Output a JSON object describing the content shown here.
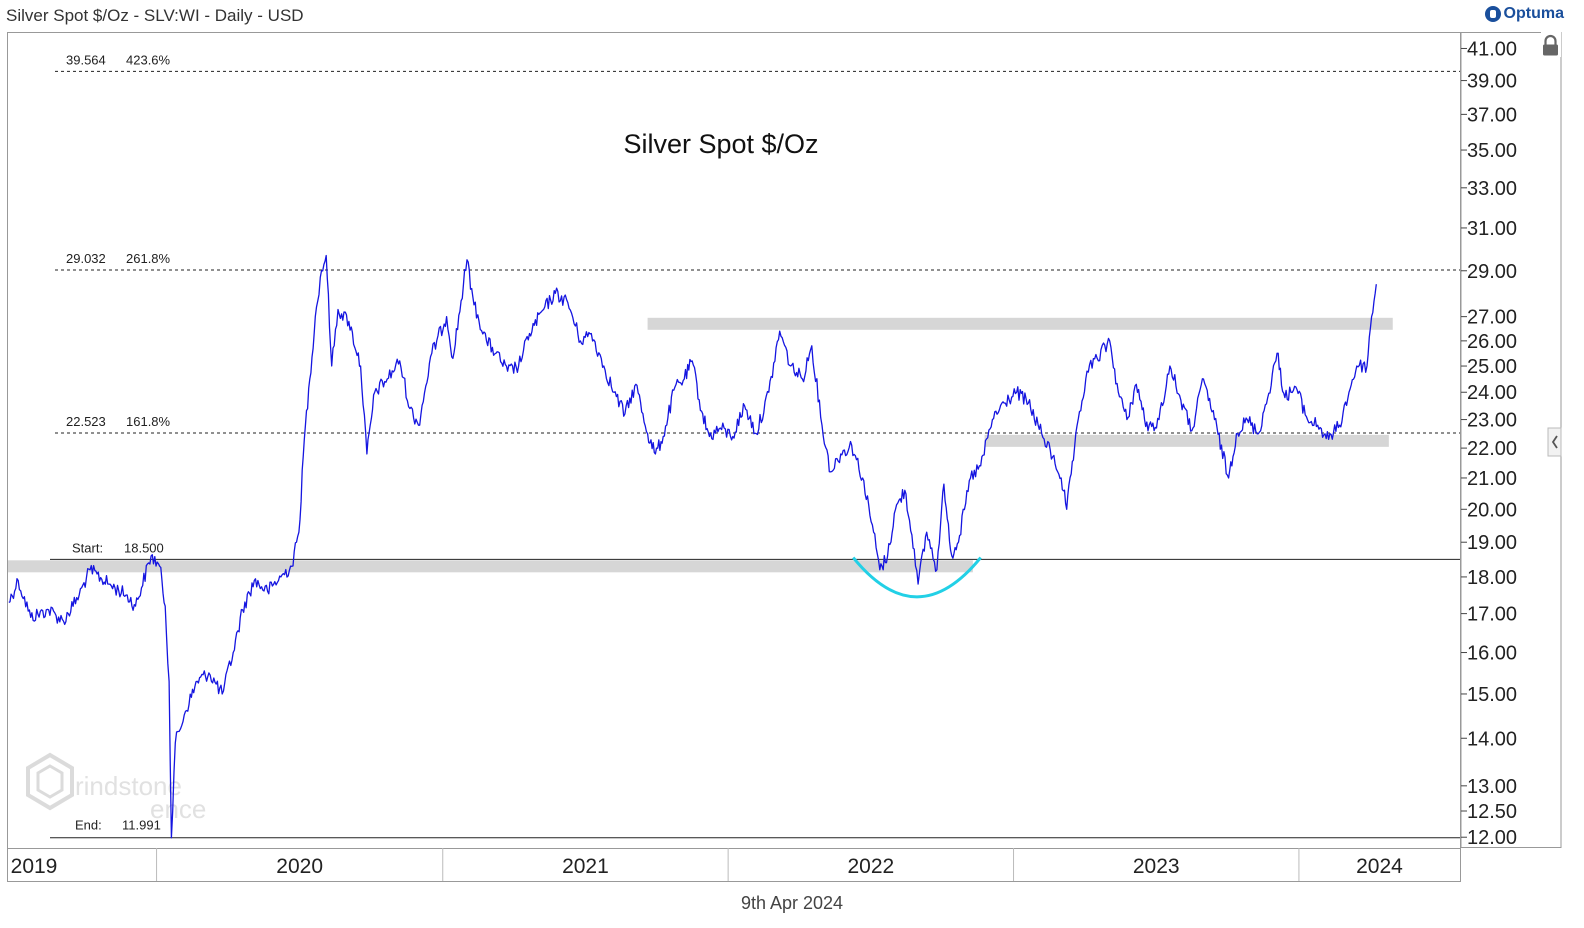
{
  "header": {
    "title": "Silver Spot $/Oz - SLV:WI - Daily - USD",
    "brand": "Optuma",
    "brand_mark_icon": "optuma-logo-icon"
  },
  "footer": {
    "date": "9th Apr 2024"
  },
  "watermark": {
    "text_line1": "rindstone",
    "text_line2": "ence",
    "icon": "grindstone-logo-icon"
  },
  "controls": {
    "lock_icon": "lock-icon",
    "collapse_icon": "chevron-left-icon"
  },
  "colors": {
    "price": "#1515e0",
    "arc": "#22d0e6",
    "band": "#d6d6d6",
    "axis": "#666666",
    "text": "#222222"
  },
  "chart_data": {
    "type": "line",
    "title": "Silver Spot $/Oz",
    "scale": "log",
    "ylim": [
      11.8,
      42
    ],
    "xlim": [
      "2019-06-25",
      "2024-07-25"
    ],
    "y_ticks": [
      "41.00",
      "39.00",
      "37.00",
      "35.00",
      "33.00",
      "31.00",
      "29.00",
      "27.00",
      "26.00",
      "25.00",
      "24.00",
      "23.00",
      "22.00",
      "21.00",
      "20.00",
      "19.00",
      "18.00",
      "17.00",
      "16.00",
      "15.00",
      "14.00",
      "13.00",
      "12.50",
      "12.00"
    ],
    "x_ticks": [
      {
        "label": "2019",
        "date": "2019-07-01"
      },
      {
        "label": "2020",
        "date": "2020-01-01"
      },
      {
        "label": "2021",
        "date": "2021-01-01"
      },
      {
        "label": "2022",
        "date": "2022-01-01"
      },
      {
        "label": "2023",
        "date": "2023-01-01"
      },
      {
        "label": "2024",
        "date": "2024-01-01"
      }
    ],
    "series": [
      {
        "values": [
          [
            "2019-06-26",
            17.3
          ],
          [
            "2019-07-08",
            17.9
          ],
          [
            "2019-07-24",
            16.9
          ],
          [
            "2019-08-16",
            17.1
          ],
          [
            "2019-09-04",
            16.8
          ],
          [
            "2019-09-24",
            17.5
          ],
          [
            "2019-10-08",
            18.2
          ],
          [
            "2019-11-01",
            17.8
          ],
          [
            "2019-11-23",
            17.5
          ],
          [
            "2019-12-05",
            17.2
          ],
          [
            "2019-12-25",
            18.6
          ],
          [
            "2020-01-05",
            18.3
          ],
          [
            "2020-01-12",
            17.2
          ],
          [
            "2020-01-17",
            15.3
          ],
          [
            "2020-01-20",
            11.991
          ],
          [
            "2020-01-25",
            13.9
          ],
          [
            "2020-02-07",
            14.6
          ],
          [
            "2020-02-22",
            15.3
          ],
          [
            "2020-03-08",
            15.5
          ],
          [
            "2020-03-25",
            15.0
          ],
          [
            "2020-04-08",
            16.0
          ],
          [
            "2020-04-20",
            17.1
          ],
          [
            "2020-05-05",
            17.9
          ],
          [
            "2020-05-22",
            17.6
          ],
          [
            "2020-06-08",
            18.0
          ],
          [
            "2020-06-22",
            18.3
          ],
          [
            "2020-07-01",
            19.3
          ],
          [
            "2020-07-08",
            22.3
          ],
          [
            "2020-07-15",
            24.5
          ],
          [
            "2020-07-22",
            27.0
          ],
          [
            "2020-07-30",
            29.0
          ],
          [
            "2020-08-05",
            29.7
          ],
          [
            "2020-08-12",
            25.0
          ],
          [
            "2020-08-20",
            27.3
          ],
          [
            "2020-09-03",
            26.8
          ],
          [
            "2020-09-18",
            25.0
          ],
          [
            "2020-09-26",
            21.8
          ],
          [
            "2020-10-06",
            24.0
          ],
          [
            "2020-10-22",
            24.5
          ],
          [
            "2020-11-07",
            25.2
          ],
          [
            "2020-11-20",
            23.4
          ],
          [
            "2020-12-01",
            22.8
          ],
          [
            "2020-12-18",
            25.5
          ],
          [
            "2021-01-06",
            27.0
          ],
          [
            "2021-01-14",
            25.3
          ],
          [
            "2021-02-01",
            29.5
          ],
          [
            "2021-02-10",
            27.5
          ],
          [
            "2021-02-26",
            26.0
          ],
          [
            "2021-03-10",
            25.5
          ],
          [
            "2021-03-25",
            24.8
          ],
          [
            "2021-04-08",
            25.0
          ],
          [
            "2021-04-22",
            26.3
          ],
          [
            "2021-05-10",
            27.3
          ],
          [
            "2021-05-25",
            28.0
          ],
          [
            "2021-06-10",
            27.6
          ],
          [
            "2021-06-26",
            26.0
          ],
          [
            "2021-07-10",
            26.3
          ],
          [
            "2021-07-26",
            25.0
          ],
          [
            "2021-08-08",
            24.0
          ],
          [
            "2021-08-22",
            23.2
          ],
          [
            "2021-09-05",
            24.3
          ],
          [
            "2021-09-20",
            22.5
          ],
          [
            "2021-09-30",
            21.8
          ],
          [
            "2021-10-10",
            22.4
          ],
          [
            "2021-10-25",
            24.2
          ],
          [
            "2021-11-06",
            24.5
          ],
          [
            "2021-11-16",
            25.2
          ],
          [
            "2021-11-28",
            23.3
          ],
          [
            "2021-12-08",
            22.4
          ],
          [
            "2021-12-22",
            22.7
          ],
          [
            "2022-01-07",
            22.4
          ],
          [
            "2022-01-22",
            23.5
          ],
          [
            "2022-02-06",
            22.5
          ],
          [
            "2022-02-22",
            24.0
          ],
          [
            "2022-03-08",
            26.4
          ],
          [
            "2022-03-22",
            25.0
          ],
          [
            "2022-04-06",
            24.5
          ],
          [
            "2022-04-18",
            25.8
          ],
          [
            "2022-05-01",
            22.8
          ],
          [
            "2022-05-12",
            21.2
          ],
          [
            "2022-05-25",
            21.8
          ],
          [
            "2022-06-08",
            22.1
          ],
          [
            "2022-06-22",
            21.0
          ],
          [
            "2022-07-06",
            19.3
          ],
          [
            "2022-07-14",
            18.2
          ],
          [
            "2022-07-24",
            18.6
          ],
          [
            "2022-08-03",
            20.0
          ],
          [
            "2022-08-15",
            20.6
          ],
          [
            "2022-08-27",
            18.8
          ],
          [
            "2022-09-01",
            17.8
          ],
          [
            "2022-09-12",
            19.3
          ],
          [
            "2022-09-25",
            18.2
          ],
          [
            "2022-10-04",
            20.8
          ],
          [
            "2022-10-14",
            18.6
          ],
          [
            "2022-10-24",
            19.2
          ],
          [
            "2022-11-07",
            21.0
          ],
          [
            "2022-11-20",
            21.4
          ],
          [
            "2022-12-05",
            23.0
          ],
          [
            "2022-12-20",
            23.6
          ],
          [
            "2023-01-05",
            24.0
          ],
          [
            "2023-01-20",
            23.6
          ],
          [
            "2023-02-06",
            22.5
          ],
          [
            "2023-02-20",
            21.7
          ],
          [
            "2023-03-03",
            21.0
          ],
          [
            "2023-03-10",
            20.0
          ],
          [
            "2023-03-20",
            22.0
          ],
          [
            "2023-04-05",
            24.8
          ],
          [
            "2023-04-18",
            25.3
          ],
          [
            "2023-05-04",
            26.0
          ],
          [
            "2023-05-15",
            24.0
          ],
          [
            "2023-05-26",
            23.0
          ],
          [
            "2023-06-07",
            24.3
          ],
          [
            "2023-06-22",
            22.6
          ],
          [
            "2023-07-06",
            23.0
          ],
          [
            "2023-07-20",
            25.0
          ],
          [
            "2023-08-03",
            23.7
          ],
          [
            "2023-08-17",
            22.6
          ],
          [
            "2023-09-01",
            24.5
          ],
          [
            "2023-09-15",
            23.0
          ],
          [
            "2023-10-03",
            21.0
          ],
          [
            "2023-10-13",
            22.5
          ],
          [
            "2023-10-27",
            23.0
          ],
          [
            "2023-11-10",
            22.5
          ],
          [
            "2023-11-22",
            23.8
          ],
          [
            "2023-12-04",
            25.5
          ],
          [
            "2023-12-14",
            23.8
          ],
          [
            "2023-12-28",
            24.2
          ],
          [
            "2024-01-12",
            23.0
          ],
          [
            "2024-01-25",
            22.8
          ],
          [
            "2024-02-08",
            22.3
          ],
          [
            "2024-02-22",
            22.8
          ],
          [
            "2024-03-05",
            24.0
          ],
          [
            "2024-03-15",
            25.0
          ],
          [
            "2024-03-28",
            25.0
          ],
          [
            "2024-04-03",
            27.0
          ],
          [
            "2024-04-09",
            28.4
          ]
        ]
      }
    ],
    "levels": [
      {
        "price": "39.564",
        "pct": "423.6%",
        "value": 39.564,
        "style": "dashed"
      },
      {
        "price": "29.032",
        "pct": "261.8%",
        "value": 29.032,
        "style": "dashed"
      },
      {
        "price": "22.523",
        "pct": "161.8%",
        "value": 22.523,
        "style": "dashed"
      }
    ],
    "start_marker": {
      "label": "Start:",
      "value_text": "18.500",
      "value": 18.5
    },
    "end_marker": {
      "label": "End:",
      "value_text": "11.991",
      "value": 11.991
    },
    "bands": [
      {
        "from": "2019-06-25",
        "to": "2022-11-10",
        "center": 18.3
      },
      {
        "from": "2021-09-20",
        "to": "2024-04-30",
        "center": 26.7
      },
      {
        "from": "2022-11-25",
        "to": "2024-04-25",
        "center": 22.25
      }
    ],
    "annotations": [
      {
        "type": "cup-arc",
        "from": "2022-06-10",
        "to": "2022-11-20",
        "low": 17.45,
        "top": 18.55
      }
    ]
  }
}
